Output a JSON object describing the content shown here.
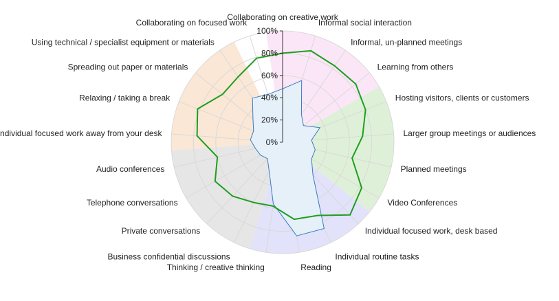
{
  "chart_data": {
    "type": "radar",
    "ylim": [
      0,
      100
    ],
    "yticks": [
      "0%",
      "20%",
      "40%",
      "60%",
      "80%",
      "100%"
    ],
    "grid": true,
    "categories": [
      "Collaborating on creative work",
      "Informal social interaction",
      "Informal, un-planned meetings",
      "Learning from others",
      "Hosting visitors, clients or customers",
      "Larger group meetings or audiences",
      "Planned meetings",
      "Video Conferences",
      "Individual focused work, desk based",
      "Individual routine tasks",
      "Reading",
      "Thinking / creative thinking",
      "Business confidential discussions",
      "Private conversations",
      "Telephone conversations",
      "Audio conferences",
      "Individual focused work away from your desk",
      "Relaxing / taking a break",
      "Spreading out paper or materials",
      "Using technical / specialist equipment or materials",
      "Collaborating on focused work"
    ],
    "sectors": [
      {
        "from": 0,
        "to": 3,
        "color": "#fbe6f7"
      },
      {
        "from": 4,
        "to": 7,
        "color": "#dff0d8"
      },
      {
        "from": 8,
        "to": 11,
        "color": "#e2e2fb"
      },
      {
        "from": 12,
        "to": 15,
        "color": "#e6e6e6"
      },
      {
        "from": 16,
        "to": 19,
        "color": "#fbe7d6"
      }
    ],
    "series": [
      {
        "color": "#1e9e1e",
        "fill": "none",
        "values": [
          80,
          86,
          83,
          84,
          80,
          72,
          64,
          82,
          89,
          73,
          70,
          58,
          60,
          66,
          70,
          60,
          77,
          82,
          69,
          71,
          79
        ]
      },
      {
        "color": "#3b7bbf",
        "fill": "#e6f0f8",
        "values": [
          48,
          58,
          30,
          24,
          36,
          26,
          30,
          30,
          40,
          86,
          85,
          56,
          28,
          20,
          23,
          25,
          29,
          28,
          34,
          48,
          45
        ]
      }
    ]
  }
}
